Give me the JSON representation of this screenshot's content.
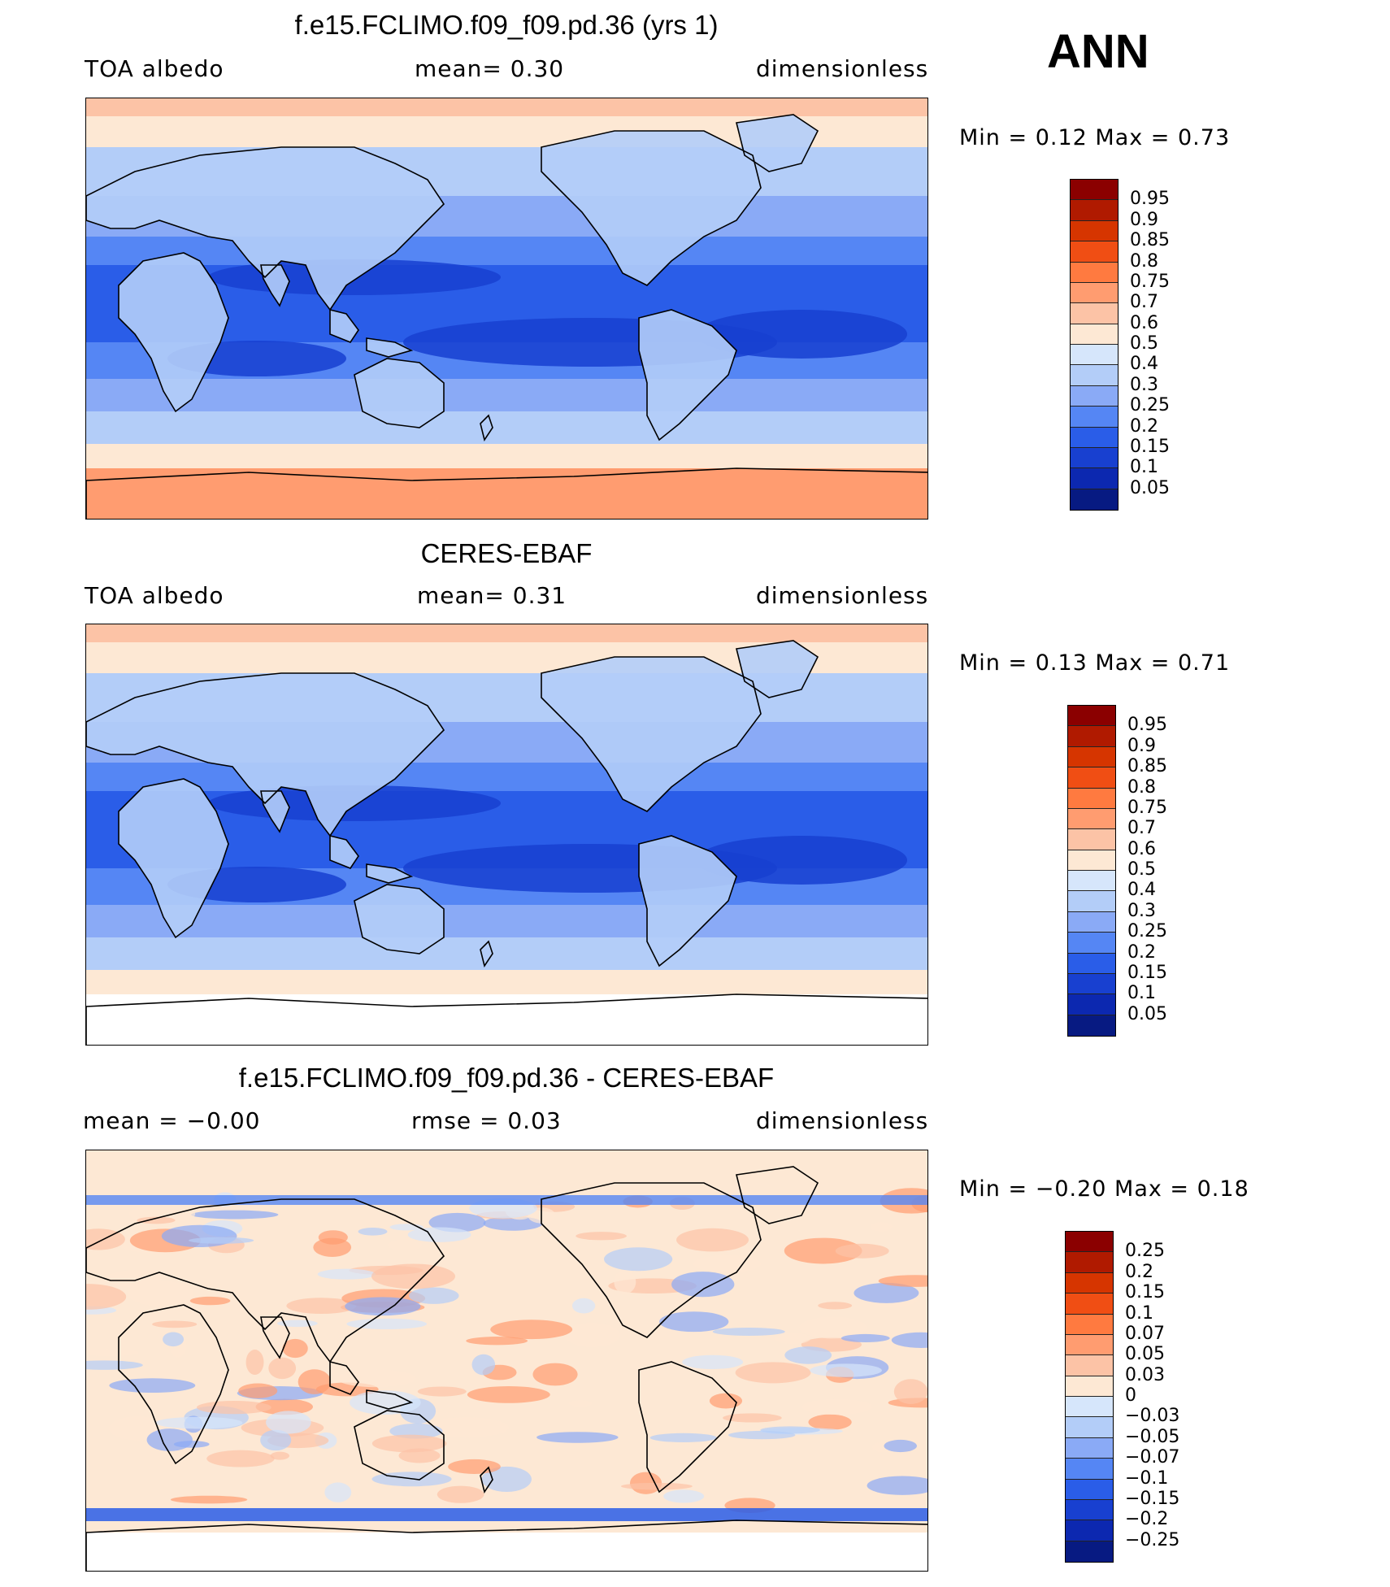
{
  "season": "ANN",
  "panels": [
    {
      "title": "f.e15.FCLIMO.f09_f09.pd.36 (yrs 1)",
      "left_label": "TOA  albedo",
      "center_label": "mean=    0.30",
      "right_label": "dimensionless",
      "minmax": "Min  =     0.12  Max  =     0.73",
      "colorbar": {
        "labels": [
          "0.95",
          "0.9",
          "0.85",
          "0.8",
          "0.75",
          "0.7",
          "0.6",
          "0.5",
          "0.4",
          "0.3",
          "0.25",
          "0.2",
          "0.15",
          "0.1",
          "0.05"
        ],
        "colors": [
          "#8b0000",
          "#b01a00",
          "#d63500",
          "#f04e14",
          "#ff7a40",
          "#ff9c70",
          "#fcc3a6",
          "#fde8d4",
          "#d6e6fb",
          "#b3cdf8",
          "#8aaaf6",
          "#5586f4",
          "#2a5de8",
          "#1840d0",
          "#0c28b0",
          "#071a82"
        ]
      },
      "variant": "model"
    },
    {
      "title": "CERES-EBAF",
      "left_label": "TOA  albedo",
      "center_label": "mean=    0.31",
      "right_label": "dimensionless",
      "minmax": "Min  =     0.13  Max  =     0.71",
      "colorbar": {
        "labels": [
          "0.95",
          "0.9",
          "0.85",
          "0.8",
          "0.75",
          "0.7",
          "0.6",
          "0.5",
          "0.4",
          "0.3",
          "0.25",
          "0.2",
          "0.15",
          "0.1",
          "0.05"
        ],
        "colors": [
          "#8b0000",
          "#b01a00",
          "#d63500",
          "#f04e14",
          "#ff7a40",
          "#ff9c70",
          "#fcc3a6",
          "#fde8d4",
          "#d6e6fb",
          "#b3cdf8",
          "#8aaaf6",
          "#5586f4",
          "#2a5de8",
          "#1840d0",
          "#0c28b0",
          "#071a82"
        ]
      },
      "variant": "obs"
    },
    {
      "title": "f.e15.FCLIMO.f09_f09.pd.36 - CERES-EBAF",
      "left_label": "mean  =   −0.00",
      "center_label": "rmse  =    0.03",
      "right_label": "dimensionless",
      "minmax": "Min  =   −0.20  Max  =     0.18",
      "colorbar": {
        "labels": [
          "0.25",
          "0.2",
          "0.15",
          "0.1",
          "0.07",
          "0.05",
          "0.03",
          "0",
          "−0.03",
          "−0.05",
          "−0.07",
          "−0.1",
          "−0.15",
          "−0.2",
          "−0.25"
        ],
        "colors": [
          "#8b0000",
          "#b01a00",
          "#d63500",
          "#f04e14",
          "#ff7a40",
          "#ff9c70",
          "#fcc3a6",
          "#fde8d4",
          "#d6e6fb",
          "#b3cdf8",
          "#8aaaf6",
          "#5586f4",
          "#2a5de8",
          "#1840d0",
          "#0c28b0",
          "#071a82"
        ]
      },
      "variant": "diff"
    }
  ]
}
